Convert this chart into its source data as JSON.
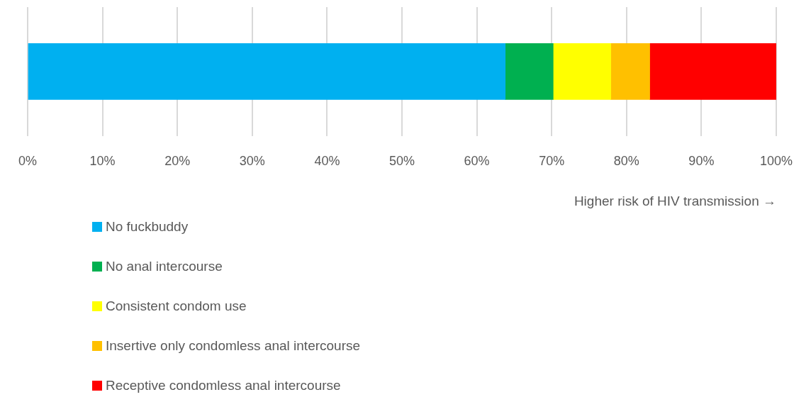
{
  "chart_data": {
    "type": "bar",
    "orientation": "horizontal",
    "stacked": true,
    "categories": [
      null
    ],
    "xlabel": "Higher risk of HIV transmission →",
    "series": [
      {
        "name": "No fuckbuddy",
        "color": "#00b0f0",
        "values": [
          63.8
        ]
      },
      {
        "name": "No anal intercourse",
        "color": "#00b050",
        "values": [
          6.4
        ]
      },
      {
        "name": "Consistent condom use",
        "color": "#ffff00",
        "values": [
          7.7
        ]
      },
      {
        "name": "Insertive only condomless anal intercourse",
        "color": "#ffc000",
        "values": [
          5.2
        ]
      },
      {
        "name": "Receptive condomless anal intercourse",
        "color": "#ff0000",
        "values": [
          16.9
        ]
      }
    ],
    "xlim": [
      0,
      100
    ],
    "xticks": [
      {
        "value": 0,
        "label": "0%"
      },
      {
        "value": 10,
        "label": "10%"
      },
      {
        "value": 20,
        "label": "20%"
      },
      {
        "value": 30,
        "label": "30%"
      },
      {
        "value": 40,
        "label": "40%"
      },
      {
        "value": 50,
        "label": "50%"
      },
      {
        "value": 60,
        "label": "60%"
      },
      {
        "value": 70,
        "label": "70%"
      },
      {
        "value": 80,
        "label": "80%"
      },
      {
        "value": 90,
        "label": "90%"
      },
      {
        "value": 100,
        "label": "100%"
      }
    ],
    "grid": "x",
    "legend": "bottom"
  }
}
